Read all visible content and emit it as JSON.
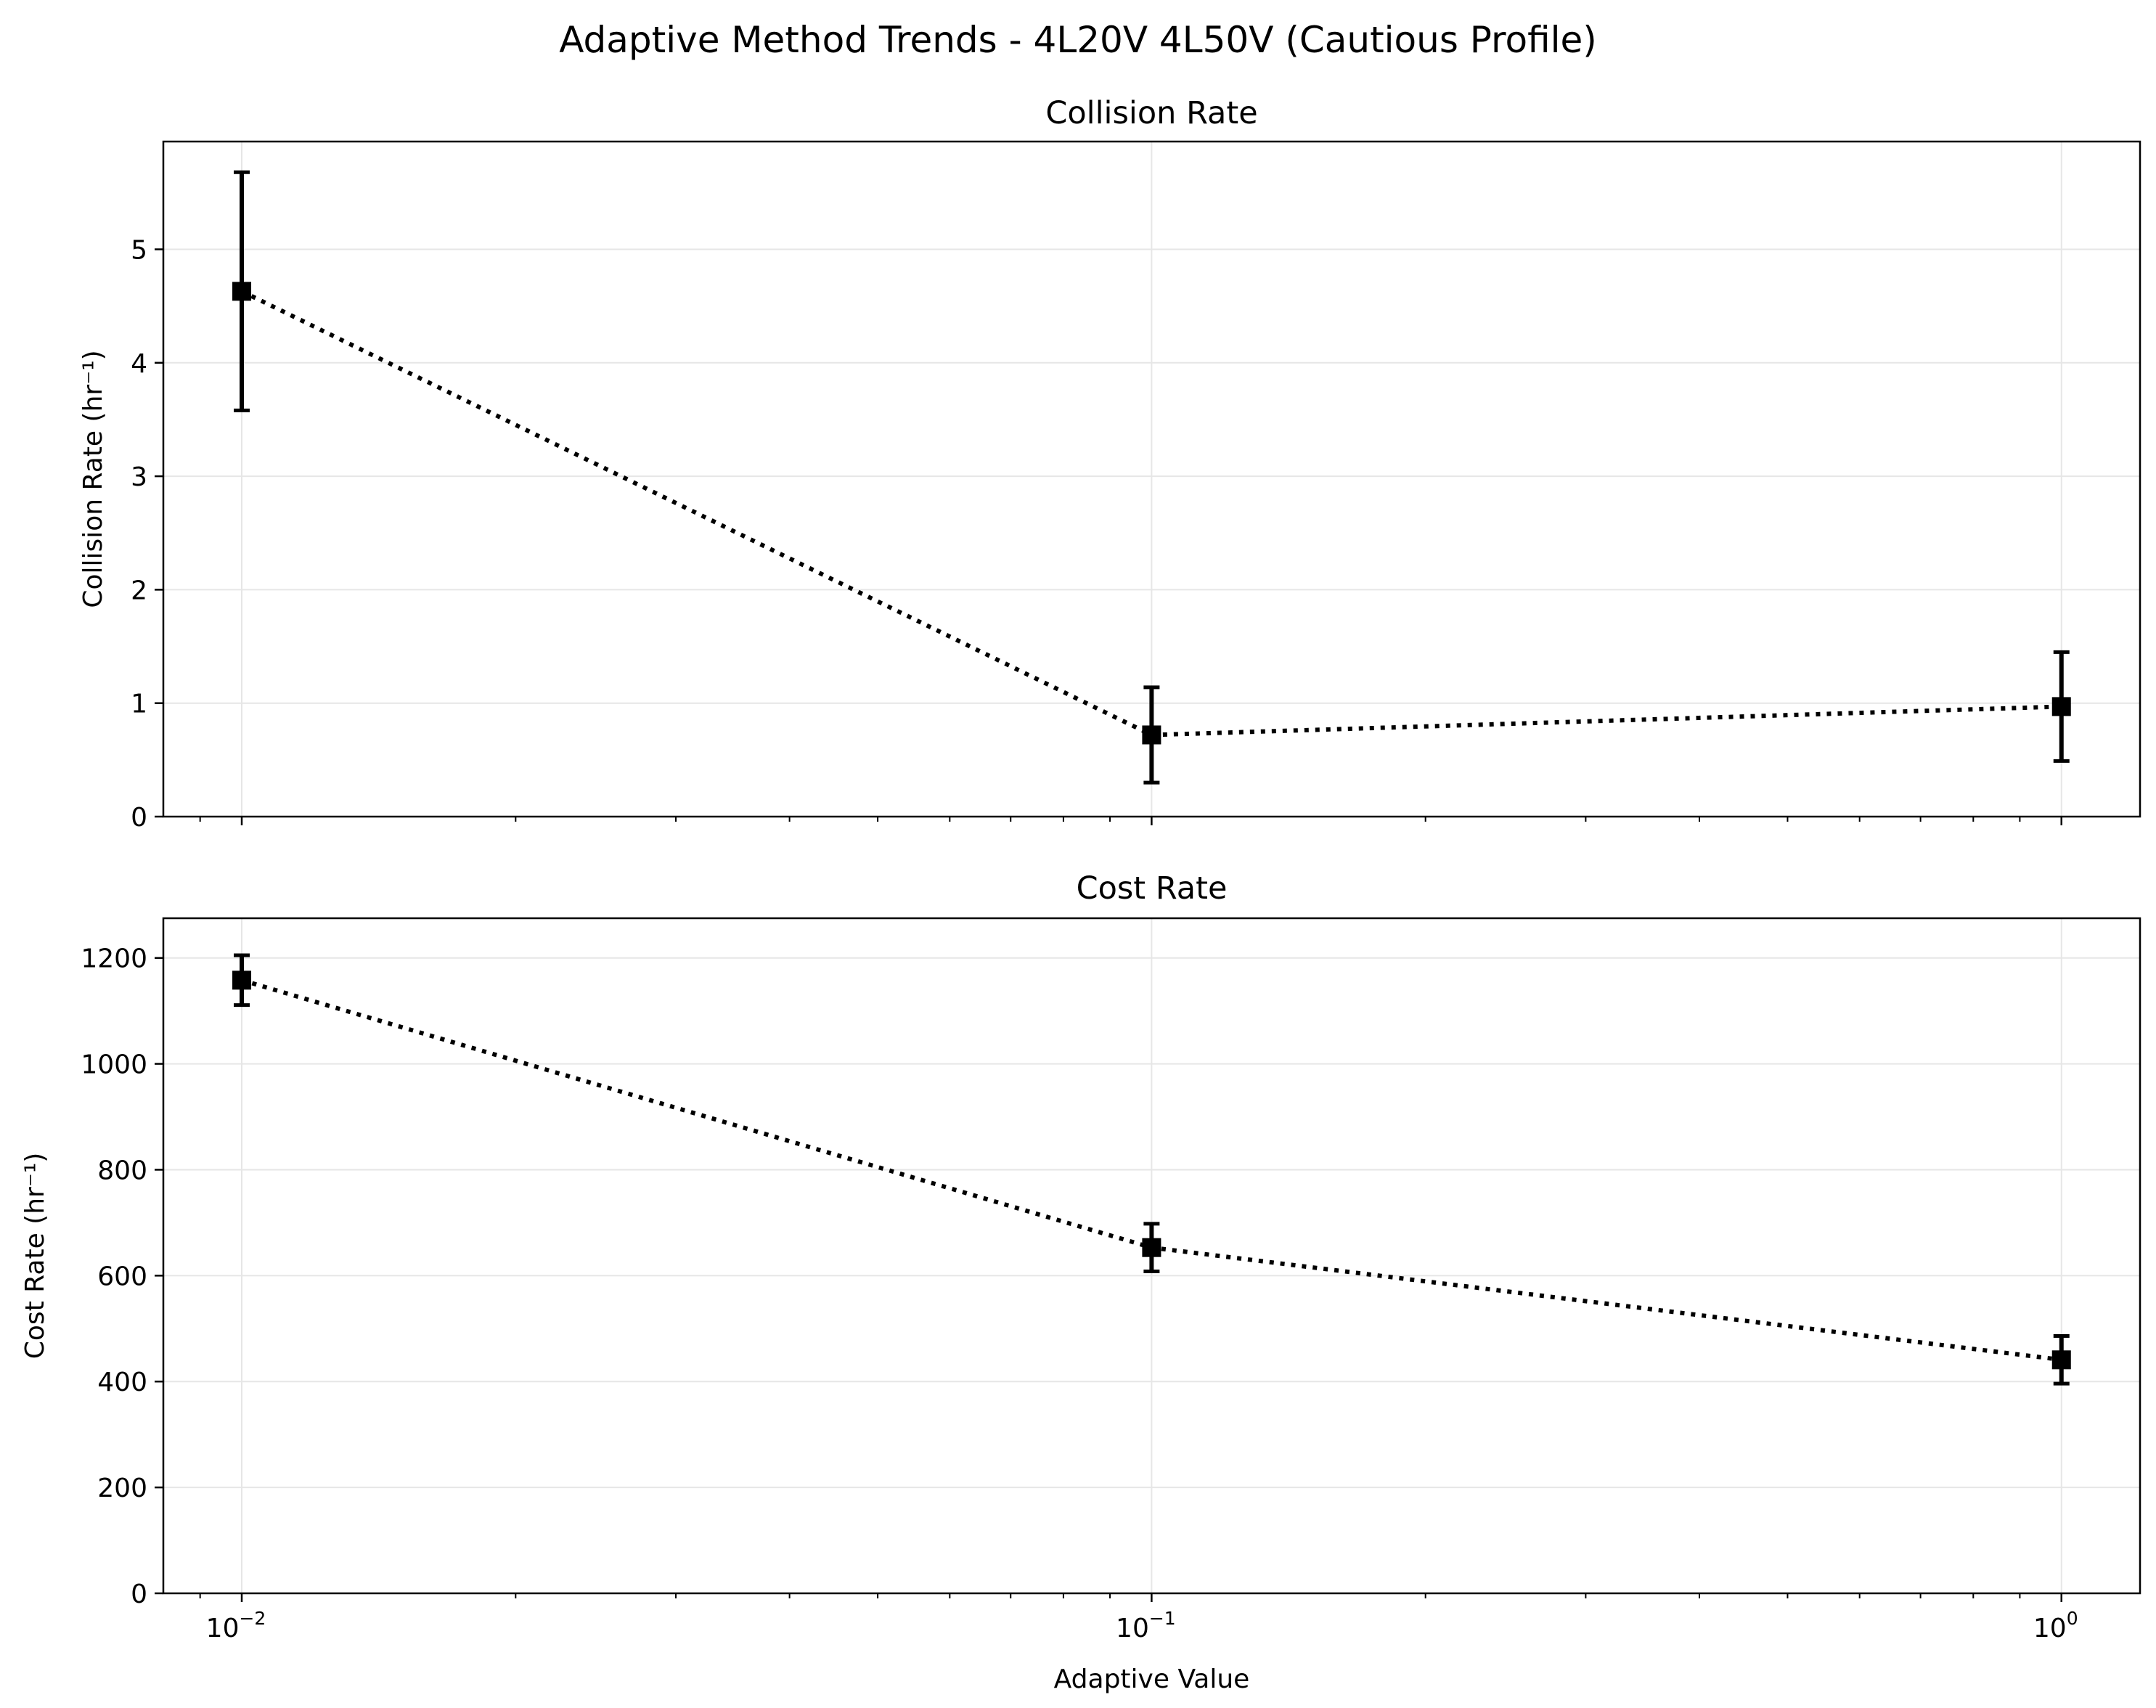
{
  "figure": {
    "suptitle": "Adaptive Method Trends - 4L20V 4L50V (Cautious Profile)",
    "colors": {
      "marker": "#000000",
      "grid": "#e6e6e6",
      "axes": "#000000"
    }
  },
  "chart_data": [
    {
      "type": "line",
      "title": "Collision Rate",
      "xlabel": "",
      "ylabel": "Collision Rate (hr⁻¹)",
      "xscale": "log",
      "xlim": [
        0.0082,
        1.22
      ],
      "ylim": [
        0,
        5.95
      ],
      "grid": true,
      "line_style": "dotted",
      "marker": "square",
      "x": [
        0.01,
        0.1,
        1.0
      ],
      "series": [
        {
          "values": [
            4.63,
            0.72,
            0.97
          ],
          "error": [
            1.05,
            0.42,
            0.48
          ]
        }
      ],
      "yticks": [
        0,
        1,
        2,
        3,
        4,
        5
      ],
      "ytick_labels": [
        "0",
        "1",
        "2",
        "3",
        "4",
        "5"
      ],
      "xtick_labels": [],
      "xtick_values": [
        0.01,
        0.1,
        1.0
      ]
    },
    {
      "type": "line",
      "title": "Cost Rate",
      "xlabel": "Adaptive Value",
      "ylabel": "Cost Rate (hr⁻¹)",
      "xscale": "log",
      "xlim": [
        0.0082,
        1.22
      ],
      "ylim": [
        0,
        1275
      ],
      "grid": true,
      "line_style": "dotted",
      "marker": "square",
      "x": [
        0.01,
        0.1,
        1.0
      ],
      "series": [
        {
          "values": [
            1158,
            653,
            441
          ],
          "error": [
            47,
            45,
            45
          ]
        }
      ],
      "yticks": [
        0,
        200,
        400,
        600,
        800,
        1000,
        1200
      ],
      "ytick_labels": [
        "0",
        "200",
        "400",
        "600",
        "800",
        "1000",
        "1200"
      ],
      "xtick_values": [
        0.01,
        0.1,
        1.0
      ],
      "xtick_labels": [
        {
          "base": "10",
          "exp": "−2"
        },
        {
          "base": "10",
          "exp": "−1"
        },
        {
          "base": "10",
          "exp": "0"
        }
      ]
    }
  ]
}
